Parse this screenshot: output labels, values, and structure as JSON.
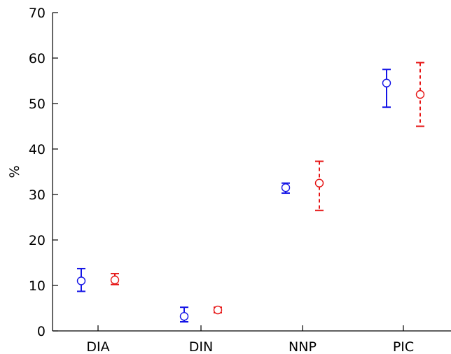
{
  "chart_data": {
    "type": "scatter",
    "categories": [
      "DIA",
      "DIN",
      "NNP",
      "PIC"
    ],
    "ylabel": "%",
    "xlabel": "",
    "ylim": [
      0,
      70
    ],
    "yticks": [
      "0",
      "10",
      "20",
      "30",
      "40",
      "50",
      "60",
      "70"
    ],
    "grid": false,
    "series": [
      {
        "color": "#1414e6",
        "line_style": "solid",
        "marker": "circle",
        "points": [
          {
            "category": "DIA",
            "y": 11.0,
            "low": 8.7,
            "high": 13.7
          },
          {
            "category": "DIN",
            "y": 3.2,
            "low": 2.0,
            "high": 5.2
          },
          {
            "category": "NNP",
            "y": 31.5,
            "low": 30.3,
            "high": 32.5
          },
          {
            "category": "PIC",
            "y": 54.5,
            "low": 49.2,
            "high": 57.5
          }
        ]
      },
      {
        "color": "#e61414",
        "line_style": "dashed",
        "marker": "circle",
        "points": [
          {
            "category": "DIA",
            "y": 11.2,
            "low": 10.2,
            "high": 12.6
          },
          {
            "category": "DIN",
            "y": 4.6,
            "low": 4.0,
            "high": 5.2
          },
          {
            "category": "NNP",
            "y": 32.5,
            "low": 26.5,
            "high": 37.3
          },
          {
            "category": "PIC",
            "y": 52.0,
            "low": 45.0,
            "high": 59.0
          }
        ]
      }
    ]
  }
}
